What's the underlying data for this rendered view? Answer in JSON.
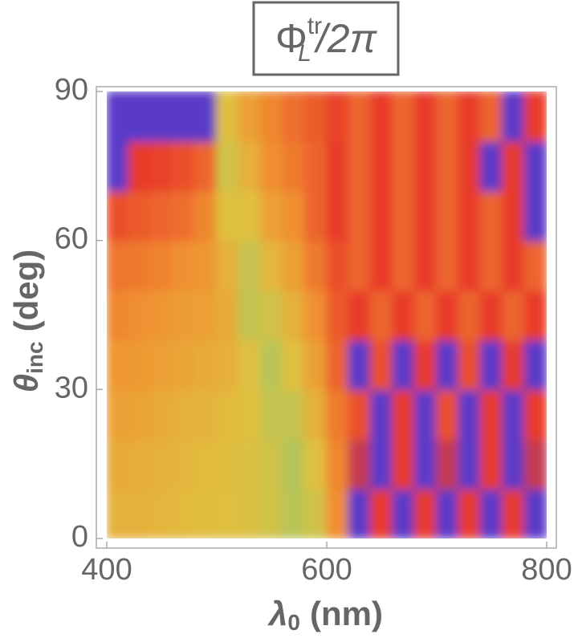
{
  "chart_data": {
    "type": "heatmap",
    "title": {
      "base": "Φ",
      "sup": "tr",
      "sub": "L",
      "rest": "/2π"
    },
    "x_label": {
      "symbol": "λ",
      "sub": "0",
      "unit": "(nm)"
    },
    "y_label": {
      "symbol": "θ",
      "sub": "inc",
      "unit": "(deg)"
    },
    "xlim": [
      400,
      800
    ],
    "ylim": [
      0,
      90
    ],
    "xticks": [
      400,
      600,
      800
    ],
    "yticks": [
      0,
      30,
      60,
      90
    ],
    "colorscale": [
      [
        0.3,
        "#8cc870"
      ],
      [
        0.45,
        "#e0c040"
      ],
      [
        0.6,
        "#f09030"
      ],
      [
        0.8,
        "#e83a2a"
      ],
      [
        1,
        "#5a3ac8"
      ]
    ],
    "x": [
      410,
      430,
      450,
      470,
      490,
      510,
      530,
      550,
      570,
      590,
      610,
      630,
      650,
      670,
      690,
      710,
      730,
      750,
      770,
      790
    ],
    "y": [
      5,
      15,
      25,
      35,
      45,
      55,
      65,
      75,
      85
    ],
    "z": [
      [
        0.5,
        0.5,
        0.48,
        0.47,
        0.46,
        0.45,
        0.44,
        0.42,
        0.38,
        0.42,
        0.6,
        1,
        0.8,
        1,
        0.8,
        1,
        0.8,
        1,
        0.8,
        1
      ],
      [
        0.52,
        0.51,
        0.5,
        0.48,
        0.47,
        0.46,
        0.44,
        0.42,
        0.37,
        0.45,
        0.62,
        0.85,
        1,
        0.8,
        1,
        0.85,
        1,
        0.8,
        1,
        0.85
      ],
      [
        0.55,
        0.54,
        0.52,
        0.5,
        0.49,
        0.47,
        0.45,
        0.4,
        0.4,
        0.5,
        0.65,
        0.75,
        1,
        0.8,
        1,
        0.75,
        1,
        0.8,
        1,
        0.8
      ],
      [
        0.58,
        0.57,
        0.55,
        0.53,
        0.52,
        0.5,
        0.45,
        0.38,
        0.45,
        0.55,
        0.7,
        1,
        0.75,
        1,
        0.8,
        1,
        0.75,
        1,
        0.8,
        1
      ],
      [
        0.62,
        0.6,
        0.58,
        0.56,
        0.55,
        0.52,
        0.4,
        0.42,
        0.5,
        0.6,
        0.72,
        0.8,
        0.7,
        0.8,
        0.7,
        0.8,
        0.7,
        0.8,
        0.7,
        0.8
      ],
      [
        0.66,
        0.65,
        0.63,
        0.6,
        0.58,
        0.5,
        0.4,
        0.48,
        0.55,
        0.65,
        0.75,
        0.7,
        0.8,
        0.7,
        0.8,
        0.7,
        0.8,
        0.7,
        0.8,
        0.7
      ],
      [
        0.75,
        0.72,
        0.7,
        0.68,
        0.62,
        0.45,
        0.45,
        0.55,
        0.6,
        0.7,
        0.8,
        0.7,
        0.8,
        0.7,
        0.8,
        0.7,
        0.8,
        0.7,
        0.8,
        1
      ],
      [
        1,
        0.8,
        0.78,
        0.75,
        0.7,
        0.42,
        0.5,
        0.6,
        0.65,
        0.7,
        0.8,
        0.7,
        0.8,
        0.7,
        0.8,
        0.7,
        0.8,
        1,
        0.8,
        1
      ],
      [
        1,
        1,
        1,
        1,
        1,
        0.45,
        0.55,
        0.62,
        0.68,
        0.72,
        0.78,
        0.7,
        0.8,
        0.7,
        0.8,
        0.7,
        0.8,
        0.7,
        1,
        0.8
      ]
    ]
  }
}
